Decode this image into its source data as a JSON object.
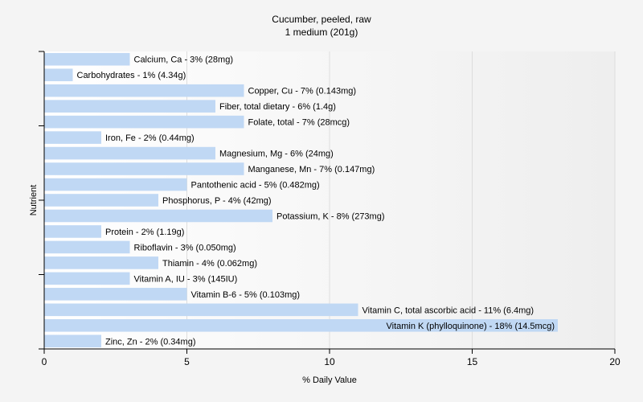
{
  "chart_data": {
    "type": "bar",
    "orientation": "horizontal",
    "title": "Cucumber, peeled, raw",
    "subtitle": "1 medium (201g)",
    "xlabel": "% Daily Value",
    "ylabel": "Nutrient",
    "xlim": [
      0,
      20
    ],
    "xticks": [
      "0",
      "5",
      "10",
      "15",
      "20"
    ],
    "grid": true,
    "bar_color": "#c0d8f4",
    "categories": [
      "Calcium, Ca",
      "Carbohydrates",
      "Copper, Cu",
      "Fiber, total dietary",
      "Folate, total",
      "Iron, Fe",
      "Magnesium, Mg",
      "Manganese, Mn",
      "Pantothenic acid",
      "Phosphorus, P",
      "Potassium, K",
      "Protein",
      "Riboflavin",
      "Thiamin",
      "Vitamin A, IU",
      "Vitamin B-6",
      "Vitamin C, total ascorbic acid",
      "Vitamin K (phylloquinone)",
      "Zinc, Zn"
    ],
    "values": [
      3,
      1,
      7,
      6,
      7,
      2,
      6,
      7,
      5,
      4,
      8,
      2,
      3,
      4,
      3,
      5,
      11,
      18,
      2
    ],
    "labels": [
      "Calcium, Ca - 3% (28mg)",
      "Carbohydrates - 1% (4.34g)",
      "Copper, Cu - 7% (0.143mg)",
      "Fiber, total dietary - 6% (1.4g)",
      "Folate, total - 7% (28mcg)",
      "Iron, Fe - 2% (0.44mg)",
      "Magnesium, Mg - 6% (24mg)",
      "Manganese, Mn - 7% (0.147mg)",
      "Pantothenic acid - 5% (0.482mg)",
      "Phosphorus, P - 4% (42mg)",
      "Potassium, K - 8% (273mg)",
      "Protein - 2% (1.19g)",
      "Riboflavin - 3% (0.050mg)",
      "Thiamin - 4% (0.062mg)",
      "Vitamin A, IU - 3% (145IU)",
      "Vitamin B-6 - 5% (0.103mg)",
      "Vitamin C, total ascorbic acid - 11% (6.4mg)",
      "Vitamin K (phylloquinone) - 18% (14.5mcg)",
      "Zinc, Zn - 2% (0.34mg)"
    ]
  }
}
